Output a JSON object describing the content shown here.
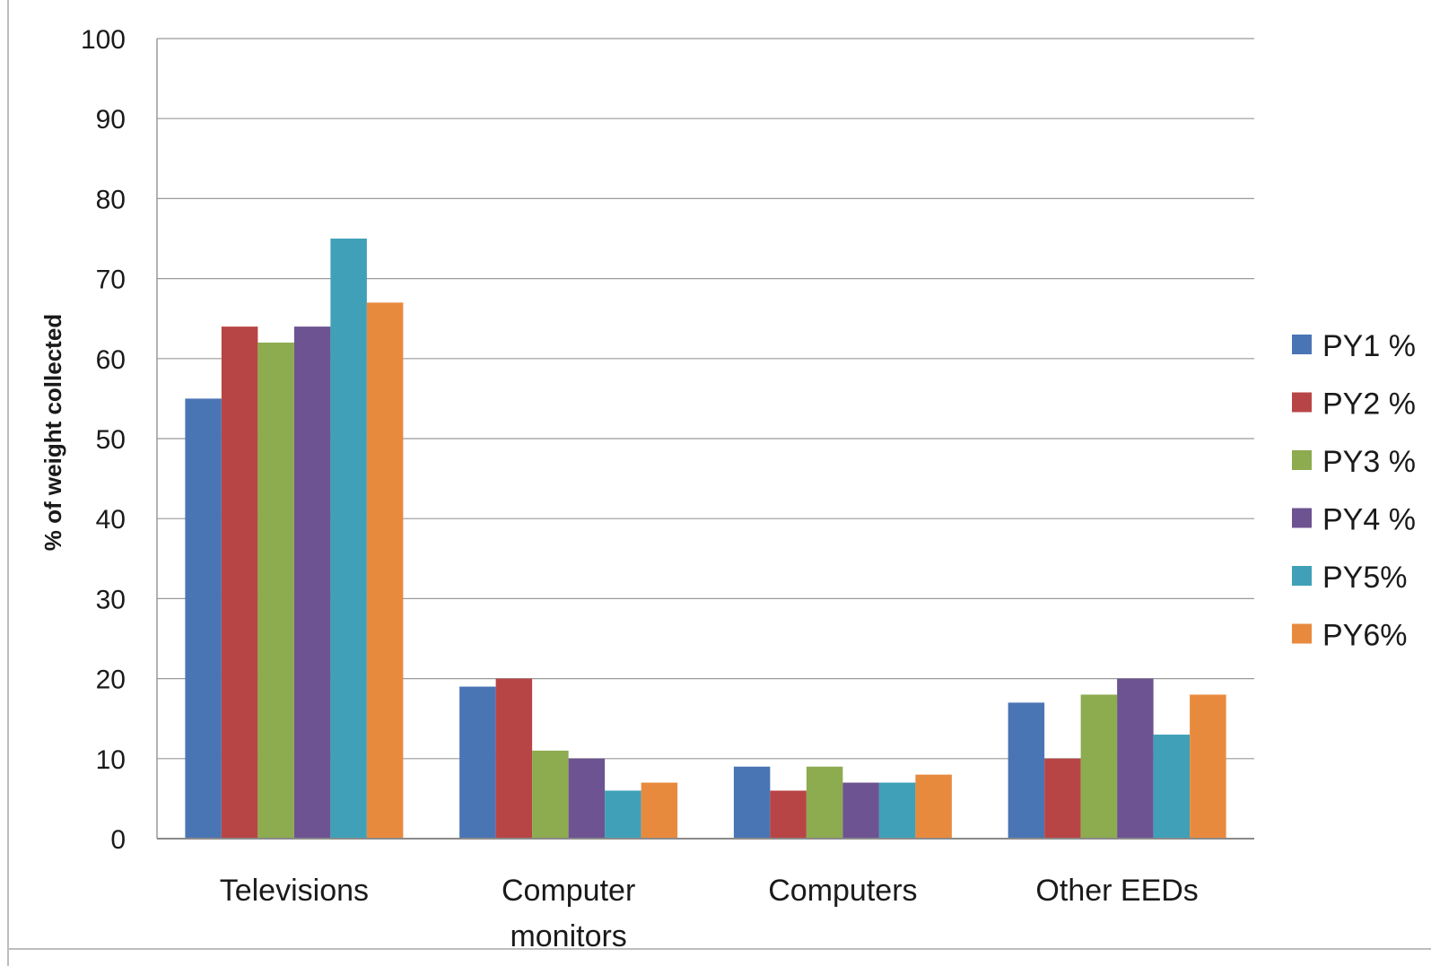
{
  "chart_data": {
    "type": "bar",
    "title": "",
    "xlabel": "",
    "ylabel": "% of weight collected",
    "ylim": [
      0,
      100
    ],
    "yticks": [
      "0",
      "10",
      "20",
      "30",
      "40",
      "50",
      "60",
      "70",
      "80",
      "90",
      "100"
    ],
    "grid": true,
    "legend_position": "right",
    "categories": [
      [
        "Televisions"
      ],
      [
        "Computer",
        "monitors"
      ],
      [
        "Computers"
      ],
      [
        "Other EEDs"
      ]
    ],
    "series": [
      {
        "name": "PY1 %",
        "color": "#4a75b5",
        "values": [
          55,
          19,
          9,
          17
        ]
      },
      {
        "name": "PY2 %",
        "color": "#b84545",
        "values": [
          64,
          20,
          6,
          10
        ]
      },
      {
        "name": "PY3 %",
        "color": "#8dab4f",
        "values": [
          62,
          11,
          9,
          18
        ]
      },
      {
        "name": "PY4 %",
        "color": "#6d5391",
        "values": [
          64,
          10,
          7,
          20
        ]
      },
      {
        "name": "PY5%",
        "color": "#3fa0b8",
        "values": [
          75,
          6,
          7,
          13
        ]
      },
      {
        "name": "PY6%",
        "color": "#e88a3d",
        "values": [
          67,
          7,
          8,
          18
        ]
      }
    ]
  }
}
